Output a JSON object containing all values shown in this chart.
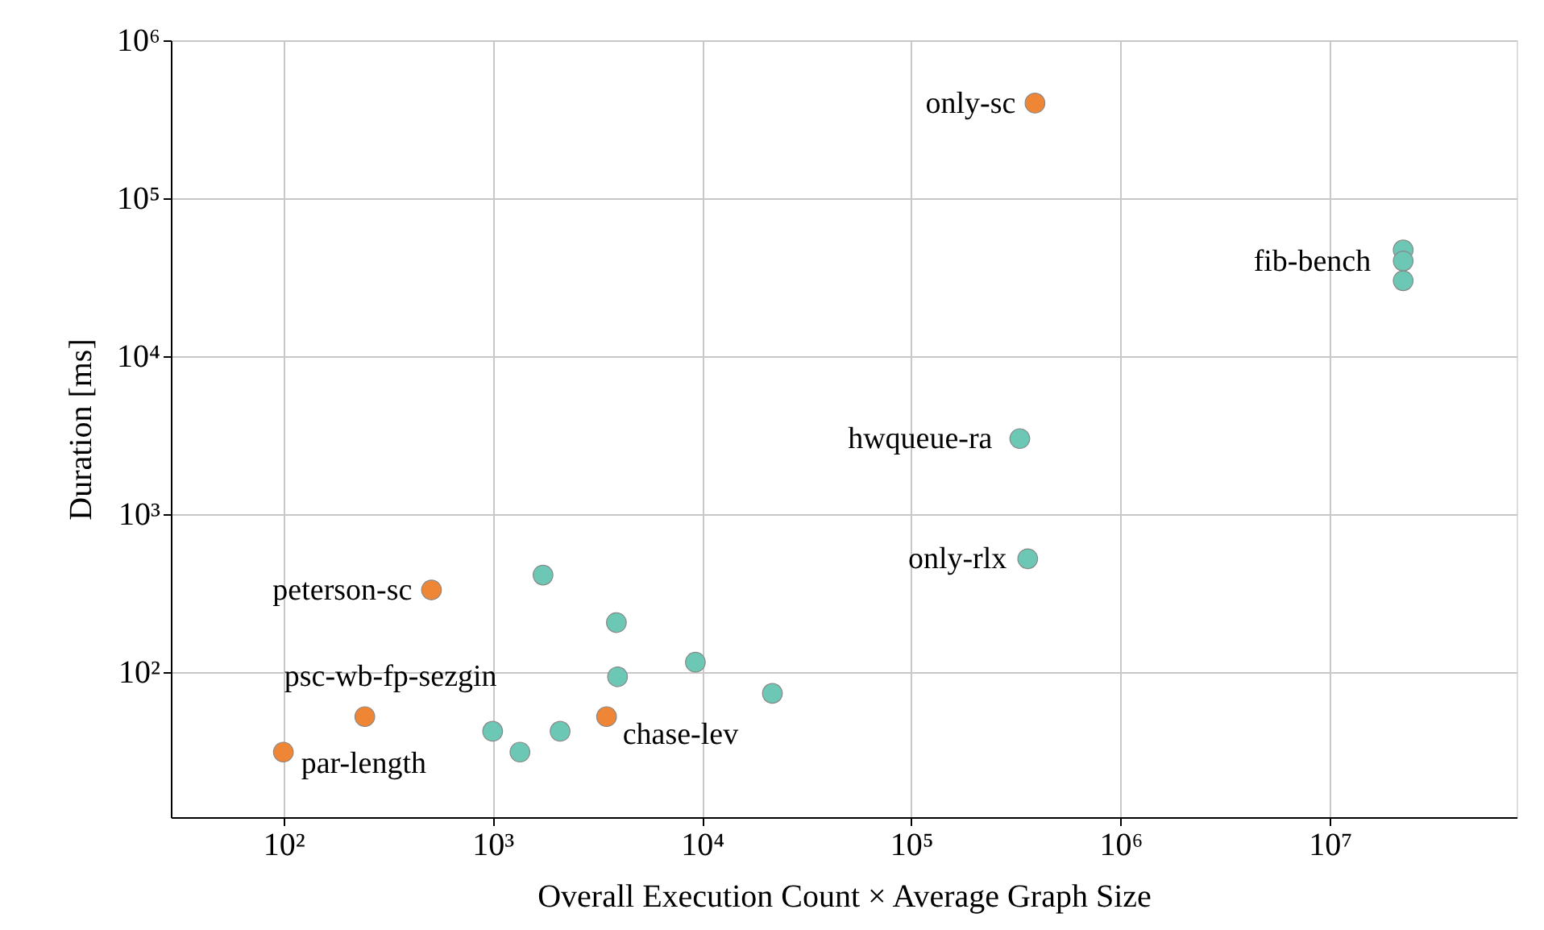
{
  "chart_data": {
    "type": "scatter",
    "xlabel": "Overall Execution Count × Average Graph Size",
    "ylabel": "Duration [ms]",
    "log": "xy",
    "grid": true,
    "marker": "circle",
    "xlim": [
      29,
      78000000
    ],
    "ylim": [
      12,
      1000000
    ],
    "xticks": [
      {
        "value": 100,
        "label": "10²"
      },
      {
        "value": 1000,
        "label": "10³"
      },
      {
        "value": 10000,
        "label": "10⁴"
      },
      {
        "value": 100000,
        "label": "10⁵"
      },
      {
        "value": 1000000,
        "label": "10⁶"
      },
      {
        "value": 10000000,
        "label": "10⁷"
      }
    ],
    "yticks": [
      {
        "value": 100,
        "label": "10²"
      },
      {
        "value": 1000,
        "label": "10³"
      },
      {
        "value": 10000,
        "label": "10⁴"
      },
      {
        "value": 100000,
        "label": "10⁵"
      },
      {
        "value": 1000000,
        "label": "10⁶"
      }
    ],
    "series": [
      {
        "color": "#ef8636",
        "x": [
          390000,
          510,
          245,
          100,
          3500
        ],
        "values": [
          400000,
          330,
          52,
          31,
          52
        ]
      },
      {
        "color": "#6cc7b5",
        "x": [
          22400000,
          22400000,
          22400000,
          330000,
          360000,
          1740,
          3900,
          3950,
          9300,
          21700,
          1000,
          1350,
          2100
        ],
        "values": [
          47000,
          40000,
          30000,
          3000,
          520,
          410,
          205,
          93,
          115,
          73,
          42,
          31,
          42
        ]
      }
    ],
    "annotations": [
      {
        "text": "only-sc",
        "x": 390000,
        "y": 400000
      },
      {
        "text": "fib-bench",
        "x": 22400000,
        "y": 40000
      },
      {
        "text": "hwqueue-ra",
        "x": 330000,
        "y": 3000
      },
      {
        "text": "only-rlx",
        "x": 360000,
        "y": 520
      },
      {
        "text": "peterson-sc",
        "x": 510,
        "y": 330
      },
      {
        "text": "psc-wb-fp-sezgin",
        "x": 245,
        "y": 52
      },
      {
        "text": "par-length",
        "x": 100,
        "y": 31
      },
      {
        "text": "chase-lev",
        "x": 3500,
        "y": 52
      }
    ]
  }
}
